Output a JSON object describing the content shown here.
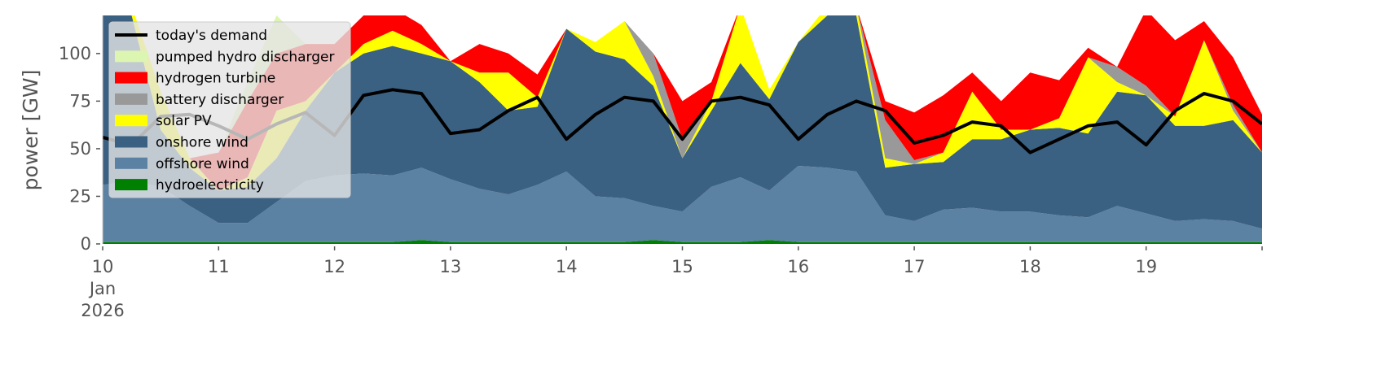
{
  "chart_data": {
    "type": "area",
    "title": "",
    "xlabel": "",
    "ylabel": "power [GW]",
    "ylim": [
      0,
      120
    ],
    "xlim": [
      10,
      20
    ],
    "yticks": [
      0,
      25,
      50,
      75,
      100
    ],
    "xticks": [
      {
        "value": 10,
        "label": "10",
        "sub": [
          "Jan",
          "2026"
        ]
      },
      {
        "value": 11,
        "label": "11"
      },
      {
        "value": 12,
        "label": "12"
      },
      {
        "value": 13,
        "label": "13"
      },
      {
        "value": 14,
        "label": "14"
      },
      {
        "value": 15,
        "label": "15"
      },
      {
        "value": 16,
        "label": "16"
      },
      {
        "value": 17,
        "label": "17"
      },
      {
        "value": 18,
        "label": "18"
      },
      {
        "value": 19,
        "label": "19"
      }
    ],
    "grid": false,
    "legend_position": "top-left",
    "x_start_day": 10,
    "x_step_days": 0.25,
    "stack_order": [
      "hydroelectricity",
      "offshore wind",
      "onshore wind",
      "solar PV",
      "battery discharger",
      "hydrogen turbine",
      "pumped hydro discharger"
    ],
    "series": [
      {
        "name": "hydroelectricity",
        "color": "#008000",
        "values": [
          1,
          1,
          1,
          1,
          1,
          1,
          1,
          1,
          1,
          1,
          1,
          2,
          1,
          1,
          1,
          1,
          1,
          1,
          1,
          2,
          1,
          1,
          1,
          2,
          1,
          1,
          1,
          1,
          1,
          1,
          1,
          1,
          1,
          1,
          1,
          1,
          1,
          1,
          1,
          1,
          1
        ]
      },
      {
        "name": "offshore wind",
        "color": "#5b81a3",
        "values": [
          30,
          32,
          29,
          19,
          10,
          10,
          21,
          32,
          35,
          36,
          35,
          38,
          33,
          28,
          25,
          30,
          37,
          24,
          23,
          18,
          16,
          29,
          34,
          26,
          40,
          39,
          37,
          14,
          11,
          17,
          18,
          16,
          16,
          14,
          13,
          19,
          15,
          11,
          12,
          11,
          7
        ]
      },
      {
        "name": "onshore wind",
        "color": "#3b6182",
        "values": [
          89,
          87,
          30,
          20,
          17,
          19,
          23,
          37,
          54,
          63,
          68,
          60,
          62,
          56,
          44,
          41,
          75,
          76,
          73,
          63,
          28,
          40,
          60,
          48,
          65,
          80,
          82,
          25,
          30,
          25,
          36,
          38,
          43,
          46,
          44,
          60,
          62,
          50,
          49,
          53,
          40
        ]
      },
      {
        "name": "solar PV",
        "color": "#ffff00",
        "values": [
          0,
          5,
          20,
          5,
          0,
          5,
          25,
          5,
          0,
          5,
          8,
          5,
          0,
          5,
          20,
          5,
          0,
          5,
          20,
          5,
          0,
          5,
          40,
          5,
          0,
          5,
          30,
          5,
          0,
          5,
          25,
          5,
          0,
          5,
          40,
          5,
          0,
          5,
          45,
          5,
          0
        ]
      },
      {
        "name": "battery discharger",
        "color": "#999999",
        "values": [
          0,
          0,
          0,
          0,
          0,
          0,
          0,
          0,
          0,
          0,
          0,
          0,
          0,
          0,
          0,
          0,
          0,
          0,
          0,
          12,
          10,
          0,
          0,
          0,
          0,
          0,
          8,
          20,
          2,
          0,
          0,
          0,
          0,
          0,
          0,
          8,
          5,
          0,
          0,
          3,
          0
        ]
      },
      {
        "name": "hydrogen turbine",
        "color": "#ff0000",
        "values": [
          0,
          0,
          0,
          0,
          20,
          40,
          30,
          30,
          15,
          15,
          12,
          10,
          0,
          15,
          10,
          12,
          0,
          0,
          0,
          0,
          20,
          10,
          0,
          0,
          0,
          0,
          0,
          10,
          25,
          30,
          10,
          15,
          30,
          20,
          5,
          0,
          40,
          40,
          10,
          25,
          20
        ]
      },
      {
        "name": "pumped hydro discharger",
        "color": "#dcf5b0",
        "values": [
          0,
          5,
          0,
          0,
          0,
          10,
          20,
          0,
          0,
          0,
          0,
          0,
          0,
          0,
          0,
          0,
          0,
          0,
          0,
          0,
          0,
          0,
          0,
          0,
          0,
          0,
          0,
          0,
          0,
          0,
          0,
          0,
          0,
          0,
          0,
          0,
          0,
          0,
          0,
          0,
          0
        ]
      }
    ],
    "line_series": {
      "name": "today's demand",
      "color": "#000000",
      "values": [
        56,
        52,
        67,
        68,
        62,
        55,
        63,
        69,
        57,
        78,
        81,
        79,
        58,
        60,
        70,
        77,
        55,
        68,
        77,
        75,
        55,
        75,
        77,
        73,
        55,
        68,
        75,
        70,
        53,
        57,
        64,
        62,
        48,
        55,
        62,
        64,
        52,
        70,
        79,
        75,
        63
      ]
    },
    "legend": [
      "today's demand",
      "pumped hydro discharger",
      "hydrogen turbine",
      "battery discharger",
      "solar PV",
      "onshore wind",
      "offshore wind",
      "hydroelectricity"
    ]
  }
}
